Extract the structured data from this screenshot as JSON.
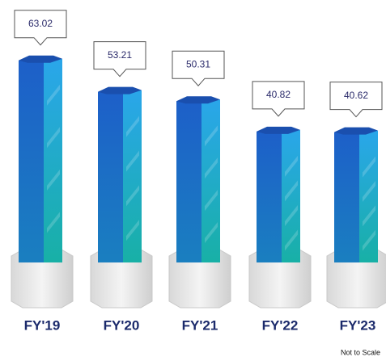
{
  "chart_data": {
    "type": "bar",
    "categories": [
      "FY'19",
      "FY'20",
      "FY'21",
      "FY'22",
      "FY'23"
    ],
    "values": [
      63.02,
      53.21,
      50.31,
      40.82,
      40.62
    ],
    "color": "#1e6fd0",
    "ylim": [
      0,
      70
    ],
    "note": "Not to Scale"
  }
}
